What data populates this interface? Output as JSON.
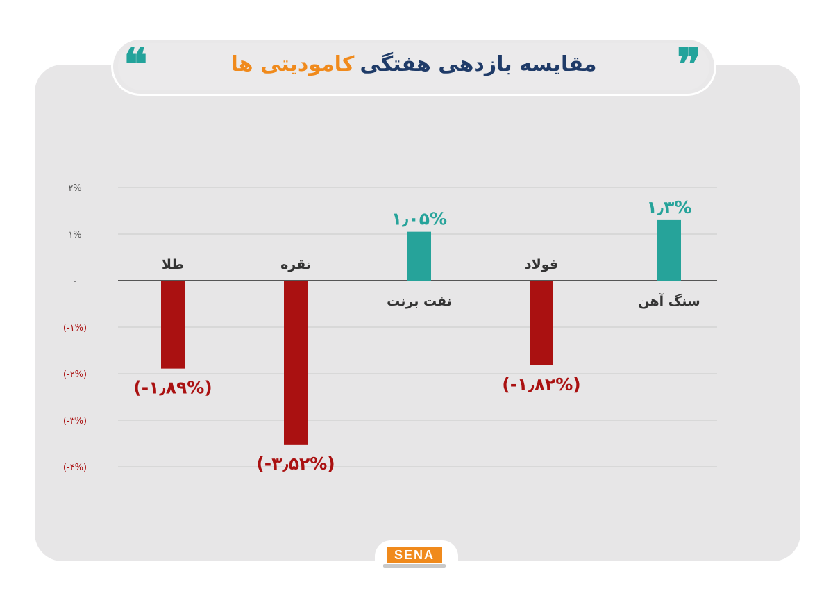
{
  "header": {
    "title_main": "مقایسه بازدهی هفتگی",
    "title_accent": "کامودیتی ها",
    "quote_open": "❝",
    "quote_close": "❞"
  },
  "logo": {
    "text": "SENA"
  },
  "colors": {
    "positive": "#26a39a",
    "negative": "#aa1111",
    "grid": "#c9c9c9",
    "axis": "#555555",
    "title_main": "#1f3b68",
    "title_accent": "#f08a1c"
  },
  "chart_data": {
    "type": "bar",
    "categories": [
      "طلا",
      "نقره",
      "نفت برنت",
      "فولاد",
      "سنگ آهن"
    ],
    "values": [
      -1.89,
      -3.52,
      1.05,
      -1.82,
      1.3
    ],
    "value_labels": [
      "(-۱٫۸۹%)",
      "(-۳٫۵۲%)",
      "۱٫۰۵%",
      "(-۱٫۸۲%)",
      "۱٫۳%"
    ],
    "ylim": [
      -4,
      2
    ],
    "yticks": [
      2,
      1,
      0,
      -1,
      -2,
      -3,
      -4
    ],
    "ytick_labels": [
      "۲%",
      "۱%",
      "۰",
      "(-۱%)",
      "(-۲%)",
      "(-۳%)",
      "(-۴%)"
    ],
    "grid": true
  }
}
